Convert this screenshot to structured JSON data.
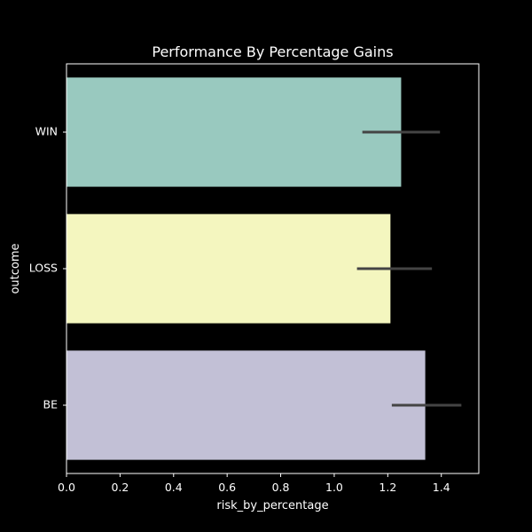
{
  "chart_data": {
    "type": "bar",
    "orientation": "horizontal",
    "title": "Performance By Percentage Gains",
    "xlabel": "risk_by_percentage",
    "ylabel": "outcome",
    "categories": [
      "WIN",
      "LOSS",
      "BE"
    ],
    "values": [
      1.25,
      1.21,
      1.34
    ],
    "error_low": [
      1.11,
      1.09,
      1.22
    ],
    "error_high": [
      1.39,
      1.36,
      1.47
    ],
    "colors": [
      "#99c9bf",
      "#f4f6bf",
      "#c2c0d6"
    ],
    "error_color": "#444444",
    "background": "#000000",
    "axis_color": "#ffffff",
    "xlim": [
      0,
      1.54
    ],
    "xticks": [
      0.0,
      0.2,
      0.4,
      0.6,
      0.8,
      1.0,
      1.2,
      1.4
    ],
    "xtick_labels": [
      "0.0",
      "0.2",
      "0.4",
      "0.6",
      "0.8",
      "1.0",
      "1.2",
      "1.4"
    ],
    "grid": false,
    "legend": "none"
  }
}
